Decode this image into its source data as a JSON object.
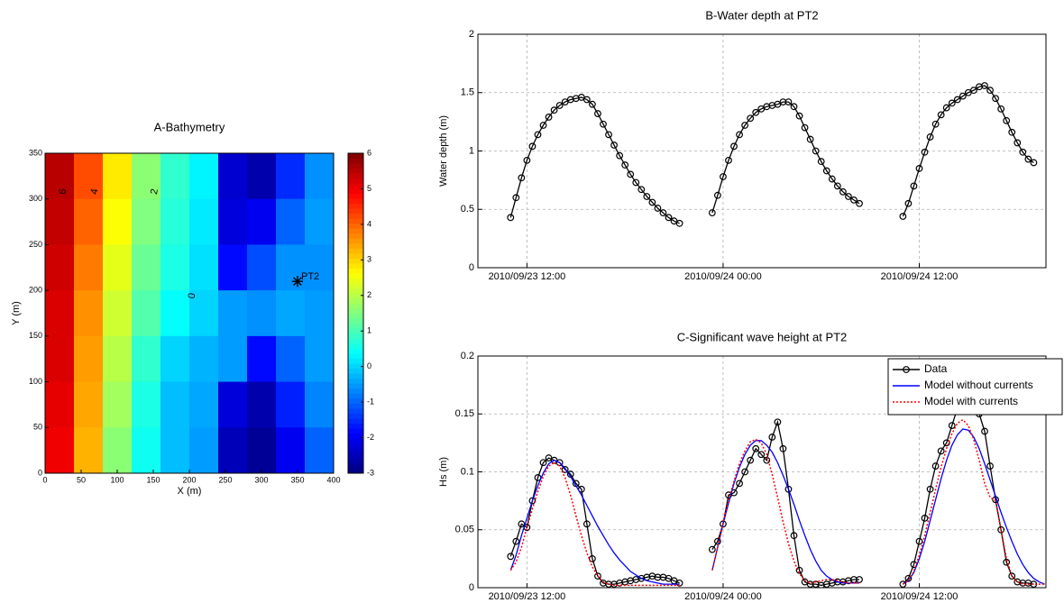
{
  "chart_data": [
    {
      "type": "heatmap",
      "title": "A-Bathymetry",
      "xlabel": "X (m)",
      "ylabel": "Y (m)",
      "x": [
        20,
        60,
        100,
        140,
        180,
        220,
        260,
        300,
        340,
        380
      ],
      "y": [
        325,
        275,
        225,
        175,
        125,
        75,
        25
      ],
      "z": [
        [
          5.5,
          4.2,
          2.8,
          1.6,
          0.8,
          0.3,
          -2.3,
          -2.6,
          -1.5,
          -0.6
        ],
        [
          5.4,
          4.0,
          2.6,
          1.5,
          0.7,
          0.2,
          -2.2,
          -2.0,
          -1.0,
          -0.5
        ],
        [
          5.3,
          3.8,
          2.4,
          1.3,
          0.6,
          0.1,
          -1.8,
          -1.2,
          -0.6,
          -0.6
        ],
        [
          5.2,
          3.6,
          2.2,
          1.1,
          0.4,
          0.0,
          -0.5,
          -0.6,
          -0.4,
          -0.5
        ],
        [
          5.2,
          3.5,
          2.0,
          0.8,
          0.0,
          -0.3,
          -0.5,
          -1.8,
          -1.0,
          -0.5
        ],
        [
          5.1,
          3.4,
          1.8,
          0.6,
          -0.2,
          -0.4,
          -2.2,
          -2.6,
          -1.6,
          -0.7
        ],
        [
          5.0,
          3.3,
          1.6,
          0.5,
          -0.2,
          -0.5,
          -2.5,
          -2.8,
          -2.0,
          -1.0
        ]
      ],
      "colormap": "jet",
      "clim": [
        -3,
        6
      ],
      "colorbar_ticks": [
        -3,
        -2,
        -1,
        0,
        1,
        2,
        3,
        4,
        5,
        6
      ],
      "xlim": [
        0,
        400
      ],
      "xticks": [
        0,
        50,
        100,
        150,
        200,
        250,
        300,
        350,
        400
      ],
      "ylim": [
        0,
        350
      ],
      "yticks": [
        0,
        50,
        100,
        150,
        200,
        250,
        300,
        350
      ],
      "contour_labels": [
        {
          "level": 6,
          "x": 25,
          "y": 308
        },
        {
          "level": 4,
          "x": 69,
          "y": 308
        },
        {
          "level": 2,
          "x": 152,
          "y": 308
        },
        {
          "level": 0,
          "x": 204,
          "y": 194
        }
      ],
      "annotations": [
        {
          "text": "PT2",
          "x": 350,
          "y": 210
        }
      ]
    },
    {
      "type": "line",
      "title": "B-Water depth at PT2",
      "ylabel": "Water depth (m)",
      "x": [
        "2010/09/23 11:00",
        "2010/09/23 11:20",
        "2010/09/23 11:40",
        "2010/09/23 12:00",
        "2010/09/23 12:20",
        "2010/09/23 12:40",
        "2010/09/23 13:00",
        "2010/09/23 13:20",
        "2010/09/23 13:40",
        "2010/09/23 14:00",
        "2010/09/23 14:20",
        "2010/09/23 14:40",
        "2010/09/23 15:00",
        "2010/09/23 15:20",
        "2010/09/23 15:40",
        "2010/09/23 16:00",
        "2010/09/23 16:20",
        "2010/09/23 16:40",
        "2010/09/23 17:00",
        "2010/09/23 17:20",
        "2010/09/23 17:40",
        "2010/09/23 18:00",
        "2010/09/23 18:20",
        "2010/09/23 18:40",
        "2010/09/23 19:00",
        "2010/09/23 19:20",
        "2010/09/23 19:40",
        "2010/09/23 20:00",
        "2010/09/23 20:20",
        "2010/09/23 20:40",
        "2010/09/23 21:00",
        "2010/09/23 21:20",
        "2010/09/23 22:20",
        "2010/09/23 23:20",
        "2010/09/23 23:40",
        "2010/09/24 00:00",
        "2010/09/24 00:20",
        "2010/09/24 00:40",
        "2010/09/24 01:00",
        "2010/09/24 01:20",
        "2010/09/24 01:40",
        "2010/09/24 02:00",
        "2010/09/24 02:20",
        "2010/09/24 02:40",
        "2010/09/24 03:00",
        "2010/09/24 03:20",
        "2010/09/24 03:40",
        "2010/09/24 04:00",
        "2010/09/24 04:20",
        "2010/09/24 04:40",
        "2010/09/24 05:00",
        "2010/09/24 05:20",
        "2010/09/24 05:40",
        "2010/09/24 06:00",
        "2010/09/24 06:20",
        "2010/09/24 06:40",
        "2010/09/24 07:00",
        "2010/09/24 07:20",
        "2010/09/24 07:40",
        "2010/09/24 08:00",
        "2010/09/24 08:20",
        "2010/09/24 09:40",
        "2010/09/24 11:00",
        "2010/09/24 11:20",
        "2010/09/24 11:40",
        "2010/09/24 12:00",
        "2010/09/24 12:20",
        "2010/09/24 12:40",
        "2010/09/24 13:00",
        "2010/09/24 13:20",
        "2010/09/24 13:40",
        "2010/09/24 14:00",
        "2010/09/24 14:20",
        "2010/09/24 14:40",
        "2010/09/24 15:00",
        "2010/09/24 15:20",
        "2010/09/24 15:40",
        "2010/09/24 16:00",
        "2010/09/24 16:20",
        "2010/09/24 16:40",
        "2010/09/24 17:00",
        "2010/09/24 17:20",
        "2010/09/24 17:40",
        "2010/09/24 18:00",
        "2010/09/24 18:20",
        "2010/09/24 18:40",
        "2010/09/24 19:00"
      ],
      "series": [
        {
          "color": "#000000",
          "marker": "o",
          "linestyle": "solid",
          "values": [
            0.43,
            0.6,
            0.77,
            0.92,
            1.04,
            1.14,
            1.22,
            1.29,
            1.35,
            1.39,
            1.42,
            1.44,
            1.45,
            1.46,
            1.44,
            1.4,
            1.32,
            1.23,
            1.14,
            1.05,
            0.96,
            0.88,
            0.8,
            0.73,
            0.67,
            0.61,
            0.56,
            0.51,
            0.47,
            0.43,
            0.4,
            0.38,
            null,
            0.47,
            0.62,
            0.78,
            0.92,
            1.04,
            1.14,
            1.22,
            1.28,
            1.33,
            1.36,
            1.38,
            1.39,
            1.4,
            1.42,
            1.42,
            1.38,
            1.3,
            1.2,
            1.1,
            1.0,
            0.91,
            0.83,
            0.76,
            0.7,
            0.65,
            0.61,
            0.58,
            0.55,
            null,
            0.44,
            0.55,
            0.7,
            0.85,
            0.99,
            1.12,
            1.23,
            1.31,
            1.37,
            1.41,
            1.44,
            1.47,
            1.5,
            1.52,
            1.55,
            1.56,
            1.52,
            1.45,
            1.36,
            1.26,
            1.16,
            1.07,
            0.99,
            0.93,
            0.9
          ]
        }
      ],
      "xlim": [
        "2010/09/23 09:00",
        "2010/09/24 19:45"
      ],
      "xticks": [
        "2010/09/23 12:00",
        "2010/09/24 00:00",
        "2010/09/24 12:00"
      ],
      "ylim": [
        0,
        2
      ],
      "yticks": [
        0,
        0.5,
        1,
        1.5,
        2
      ],
      "grid": true
    },
    {
      "type": "line",
      "title": "C-Significant wave height at PT2",
      "ylabel": "Hs (m)",
      "x": [
        "2010/09/23 11:00",
        "2010/09/23 11:20",
        "2010/09/23 11:40",
        "2010/09/23 12:00",
        "2010/09/23 12:20",
        "2010/09/23 12:40",
        "2010/09/23 13:00",
        "2010/09/23 13:20",
        "2010/09/23 13:40",
        "2010/09/23 14:00",
        "2010/09/23 14:20",
        "2010/09/23 14:40",
        "2010/09/23 15:00",
        "2010/09/23 15:20",
        "2010/09/23 15:40",
        "2010/09/23 16:00",
        "2010/09/23 16:20",
        "2010/09/23 16:40",
        "2010/09/23 17:00",
        "2010/09/23 17:20",
        "2010/09/23 17:40",
        "2010/09/23 18:00",
        "2010/09/23 18:20",
        "2010/09/23 18:40",
        "2010/09/23 19:00",
        "2010/09/23 19:20",
        "2010/09/23 19:40",
        "2010/09/23 20:00",
        "2010/09/23 20:20",
        "2010/09/23 20:40",
        "2010/09/23 21:00",
        "2010/09/23 21:20",
        "2010/09/23 22:20",
        "2010/09/23 23:20",
        "2010/09/23 23:40",
        "2010/09/24 00:00",
        "2010/09/24 00:20",
        "2010/09/24 00:40",
        "2010/09/24 01:00",
        "2010/09/24 01:20",
        "2010/09/24 01:40",
        "2010/09/24 02:00",
        "2010/09/24 02:20",
        "2010/09/24 02:40",
        "2010/09/24 03:00",
        "2010/09/24 03:20",
        "2010/09/24 03:40",
        "2010/09/24 04:00",
        "2010/09/24 04:20",
        "2010/09/24 04:40",
        "2010/09/24 05:00",
        "2010/09/24 05:20",
        "2010/09/24 05:40",
        "2010/09/24 06:00",
        "2010/09/24 06:20",
        "2010/09/24 06:40",
        "2010/09/24 07:00",
        "2010/09/24 07:20",
        "2010/09/24 07:40",
        "2010/09/24 08:00",
        "2010/09/24 08:20",
        "2010/09/24 09:40",
        "2010/09/24 11:00",
        "2010/09/24 11:20",
        "2010/09/24 11:40",
        "2010/09/24 12:00",
        "2010/09/24 12:20",
        "2010/09/24 12:40",
        "2010/09/24 13:00",
        "2010/09/24 13:20",
        "2010/09/24 13:40",
        "2010/09/24 14:00",
        "2010/09/24 14:20",
        "2010/09/24 14:40",
        "2010/09/24 15:00",
        "2010/09/24 15:20",
        "2010/09/24 15:40",
        "2010/09/24 16:00",
        "2010/09/24 16:20",
        "2010/09/24 16:40",
        "2010/09/24 17:00",
        "2010/09/24 17:20",
        "2010/09/24 17:40",
        "2010/09/24 18:00",
        "2010/09/24 18:20",
        "2010/09/24 18:40",
        "2010/09/24 19:00",
        "2010/09/24 19:20",
        "2010/09/24 19:40"
      ],
      "series": [
        {
          "name": "Data",
          "color": "#000000",
          "marker": "o",
          "linestyle": "solid",
          "values": [
            0.027,
            0.04,
            0.055,
            0.052,
            0.075,
            0.095,
            0.108,
            0.112,
            0.11,
            0.108,
            0.102,
            0.098,
            0.09,
            0.085,
            0.055,
            0.025,
            0.01,
            0.004,
            0.003,
            0.003,
            0.004,
            0.005,
            0.006,
            0.007,
            0.008,
            0.009,
            0.01,
            0.009,
            0.009,
            0.008,
            0.006,
            0.004,
            null,
            0.033,
            0.04,
            0.055,
            0.08,
            0.082,
            0.09,
            0.1,
            0.11,
            0.12,
            0.115,
            0.11,
            0.13,
            0.143,
            0.12,
            0.085,
            0.045,
            0.015,
            0.005,
            0.003,
            0.003,
            0.002,
            0.003,
            0.004,
            0.005,
            0.005,
            0.006,
            0.007,
            0.007,
            null,
            0.003,
            0.008,
            0.02,
            0.04,
            0.06,
            0.085,
            0.105,
            0.118,
            0.125,
            0.14,
            0.155,
            0.17,
            0.19,
            0.175,
            0.15,
            0.135,
            0.105,
            0.076,
            0.05,
            0.022,
            0.01,
            0.005,
            0.004,
            0.004,
            0.003,
            null,
            null
          ]
        },
        {
          "name": "Model without currents",
          "color": "#0000ff",
          "linestyle": "solid",
          "values": [
            0.015,
            0.028,
            0.045,
            0.06,
            0.075,
            0.088,
            0.099,
            0.107,
            0.11,
            0.108,
            0.103,
            0.096,
            0.088,
            0.08,
            0.071,
            0.062,
            0.053,
            0.045,
            0.037,
            0.03,
            0.024,
            0.019,
            0.014,
            0.011,
            0.008,
            0.006,
            0.005,
            0.004,
            0.003,
            0.003,
            0.003,
            0.003,
            null,
            0.015,
            0.035,
            0.055,
            0.073,
            0.09,
            0.104,
            0.115,
            0.123,
            0.127,
            0.127,
            0.123,
            0.117,
            0.108,
            0.097,
            0.085,
            0.072,
            0.058,
            0.045,
            0.033,
            0.023,
            0.015,
            0.01,
            0.007,
            0.005,
            0.004,
            0.004,
            0.004,
            0.004,
            null,
            0.003,
            0.006,
            0.013,
            0.025,
            0.04,
            0.058,
            0.076,
            0.094,
            0.11,
            0.123,
            0.132,
            0.137,
            0.136,
            0.13,
            0.12,
            0.107,
            0.093,
            0.079,
            0.065,
            0.052,
            0.04,
            0.029,
            0.02,
            0.013,
            0.008,
            0.005,
            0.003
          ]
        },
        {
          "name": "Model with currents",
          "color": "#ff0000",
          "linestyle": "dotted",
          "values": [
            0.015,
            0.022,
            0.035,
            0.052,
            0.068,
            0.083,
            0.096,
            0.105,
            0.108,
            0.105,
            0.095,
            0.08,
            0.062,
            0.045,
            0.03,
            0.018,
            0.01,
            0.005,
            0.003,
            0.002,
            0.002,
            0.002,
            0.002,
            0.002,
            0.002,
            0.002,
            0.002,
            0.002,
            0.002,
            0.002,
            0.002,
            0.002,
            null,
            0.015,
            0.035,
            0.056,
            0.075,
            0.092,
            0.107,
            0.118,
            0.126,
            0.128,
            0.125,
            0.115,
            0.098,
            0.078,
            0.057,
            0.038,
            0.023,
            0.012,
            0.006,
            0.004,
            0.005,
            0.006,
            0.007,
            0.007,
            0.006,
            0.005,
            0.004,
            0.004,
            0.004,
            null,
            0.003,
            0.006,
            0.014,
            0.028,
            0.045,
            0.065,
            0.085,
            0.104,
            0.12,
            0.133,
            0.142,
            0.145,
            0.14,
            0.128,
            0.11,
            0.09,
            0.078,
            0.075,
            0.05,
            0.025,
            0.01,
            0.005,
            0.003,
            0.003,
            0.003,
            0.003,
            0.003
          ]
        }
      ],
      "xlim": [
        "2010/09/23 09:00",
        "2010/09/24 19:45"
      ],
      "xticks": [
        "2010/09/23 12:00",
        "2010/09/24 00:00",
        "2010/09/24 12:00"
      ],
      "ylim": [
        0,
        0.2
      ],
      "yticks": [
        0,
        0.05,
        0.1,
        0.15,
        0.2
      ],
      "grid": true,
      "legend": "northeast"
    }
  ]
}
